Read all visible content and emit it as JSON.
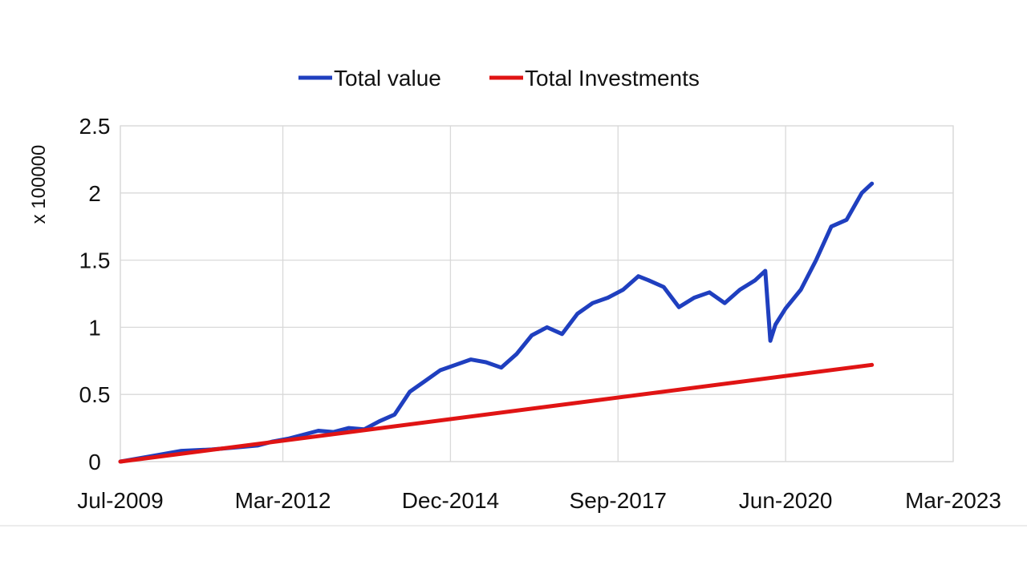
{
  "chart_data": {
    "type": "line",
    "title": "",
    "xlabel": "",
    "ylabel": "x 100000",
    "xlim": [
      "Jul-2009",
      "Mar-2023"
    ],
    "ylim": [
      0,
      2.5
    ],
    "x_ticks": [
      "Jul-2009",
      "Mar-2012",
      "Dec-2014",
      "Sep-2017",
      "Jun-2020",
      "Mar-2023"
    ],
    "y_ticks": [
      "0",
      "0.5",
      "1",
      "1.5",
      "2",
      "2.5"
    ],
    "grid": true,
    "legend_position": "top",
    "series": [
      {
        "name": "Total value",
        "color": "#1f3fbf",
        "x": [
          "2009-07",
          "2010-01",
          "2010-07",
          "2011-01",
          "2011-07",
          "2011-10",
          "2012-01",
          "2012-04",
          "2012-07",
          "2012-10",
          "2013-01",
          "2013-04",
          "2013-07",
          "2013-10",
          "2014-01",
          "2014-04",
          "2014-07",
          "2014-10",
          "2015-01",
          "2015-04",
          "2015-07",
          "2015-10",
          "2016-01",
          "2016-04",
          "2016-07",
          "2016-10",
          "2017-01",
          "2017-04",
          "2017-07",
          "2017-10",
          "2018-01",
          "2018-03",
          "2018-06",
          "2018-09",
          "2018-12",
          "2019-03",
          "2019-06",
          "2019-09",
          "2019-12",
          "2020-02",
          "2020-03",
          "2020-04",
          "2020-06",
          "2020-09",
          "2020-12",
          "2021-03",
          "2021-06",
          "2021-09",
          "2021-11"
        ],
        "values": [
          0.0,
          0.04,
          0.08,
          0.09,
          0.11,
          0.12,
          0.15,
          0.17,
          0.2,
          0.23,
          0.22,
          0.25,
          0.24,
          0.3,
          0.35,
          0.52,
          0.6,
          0.68,
          0.72,
          0.76,
          0.74,
          0.7,
          0.8,
          0.94,
          1.0,
          0.95,
          1.1,
          1.18,
          1.22,
          1.28,
          1.38,
          1.35,
          1.3,
          1.15,
          1.22,
          1.26,
          1.18,
          1.28,
          1.35,
          1.42,
          0.9,
          1.02,
          1.14,
          1.28,
          1.5,
          1.75,
          1.8,
          2.0,
          2.07
        ]
      },
      {
        "name": "Total Investments",
        "color": "#e01414",
        "x": [
          "2009-07",
          "2021-11"
        ],
        "values": [
          0.0,
          0.72
        ]
      }
    ]
  }
}
